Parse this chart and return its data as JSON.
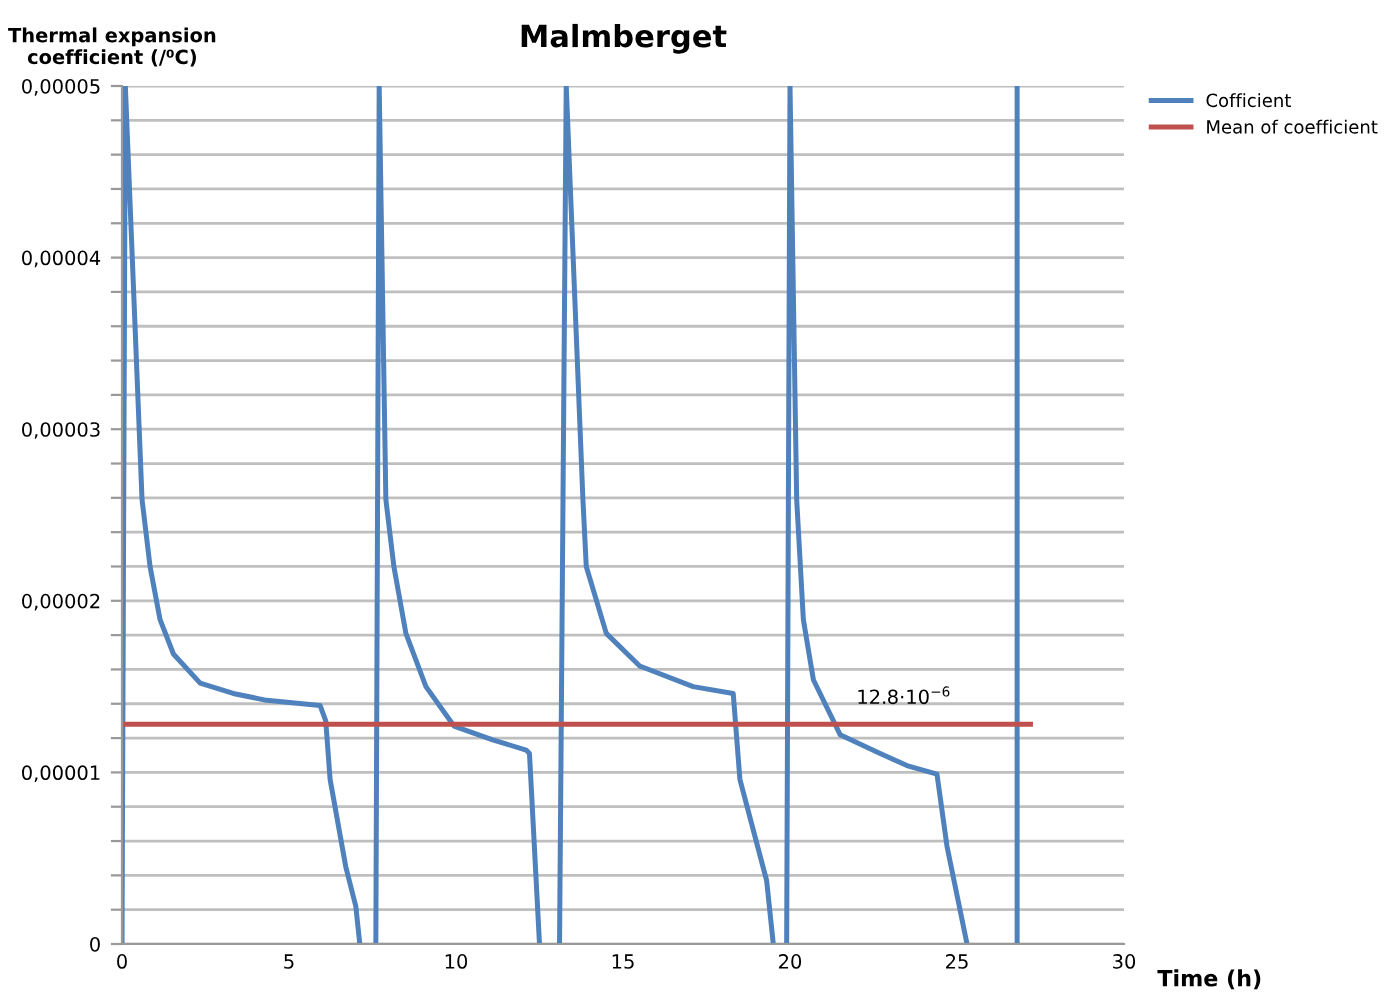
{
  "chart_data": {
    "type": "line",
    "title": "Malmberget",
    "xlabel": "Time (h)",
    "ylabel": "Thermal expansion\ncoefficient (/⁰C)",
    "xlim": [
      0,
      30
    ],
    "xticks": [
      0,
      5,
      10,
      15,
      20,
      25,
      30
    ],
    "ylim": [
      0,
      5e-05
    ],
    "yticks": [
      {
        "value": 0,
        "label": "0"
      },
      {
        "value": 2e-06,
        "label": null
      },
      {
        "value": 4e-06,
        "label": null
      },
      {
        "value": 6e-06,
        "label": null
      },
      {
        "value": 8e-06,
        "label": null
      },
      {
        "value": 1e-05,
        "label": "0,00001"
      },
      {
        "value": 1.2e-05,
        "label": null
      },
      {
        "value": 1.4e-05,
        "label": null
      },
      {
        "value": 1.6e-05,
        "label": null
      },
      {
        "value": 1.8e-05,
        "label": null
      },
      {
        "value": 2e-05,
        "label": "0,00002"
      },
      {
        "value": 2.2e-05,
        "label": null
      },
      {
        "value": 2.4e-05,
        "label": null
      },
      {
        "value": 2.6e-05,
        "label": null
      },
      {
        "value": 2.8e-05,
        "label": null
      },
      {
        "value": 3e-05,
        "label": "0,00003"
      },
      {
        "value": 3.2e-05,
        "label": null
      },
      {
        "value": 3.4e-05,
        "label": null
      },
      {
        "value": 3.6e-05,
        "label": null
      },
      {
        "value": 3.8e-05,
        "label": null
      },
      {
        "value": 4e-05,
        "label": "0,00004"
      },
      {
        "value": 4.2e-05,
        "label": null
      },
      {
        "value": 4.4e-05,
        "label": null
      },
      {
        "value": 4.6e-05,
        "label": null
      },
      {
        "value": 4.8e-05,
        "label": null
      },
      {
        "value": 5e-05,
        "label": "0,00005"
      }
    ],
    "grid": "y",
    "legend": "top right",
    "series": [
      {
        "name": "Cofficient",
        "color": "#4f81bd",
        "x": [
          0,
          0.1,
          0.6,
          0.84,
          1.14,
          1.54,
          2.34,
          3.33,
          4.33,
          5.93,
          6.1,
          6.23,
          6.7,
          7.0,
          7.12,
          null,
          7.6,
          7.7,
          7.9,
          8.14,
          8.5,
          9.1,
          9.94,
          11.1,
          12.1,
          12.2,
          12.5,
          null,
          13.1,
          13.3,
          13.8,
          13.9,
          14.5,
          15.5,
          17.1,
          18.3,
          18.5,
          19.3,
          19.5,
          null,
          19.9,
          20.0,
          20.2,
          20.4,
          20.7,
          21.5,
          22.7,
          23.5,
          24.4,
          24.7,
          25.3,
          null,
          26.8,
          26.8
        ],
        "values": [
          0,
          5e-05,
          2.59e-05,
          2.2e-05,
          1.89e-05,
          1.69e-05,
          1.52e-05,
          1.46e-05,
          1.42e-05,
          1.39e-05,
          1.3e-05,
          9.6e-06,
          4.5e-06,
          2.2e-06,
          0,
          null,
          0,
          5e-05,
          2.59e-05,
          2.2e-05,
          1.81e-05,
          1.5e-05,
          1.27e-05,
          1.19e-05,
          1.13e-05,
          1.11e-05,
          0,
          null,
          0,
          5e-05,
          2.59e-05,
          2.2e-05,
          1.81e-05,
          1.62e-05,
          1.5e-05,
          1.46e-05,
          9.6e-06,
          3.7e-06,
          0,
          null,
          0,
          5e-05,
          2.59e-05,
          1.89e-05,
          1.54e-05,
          1.22e-05,
          1.11e-05,
          1.04e-05,
          9.9e-06,
          5.7e-06,
          0,
          null,
          0,
          5e-05
        ]
      },
      {
        "name": "Mean of coefficient",
        "color": "#c0504d",
        "x": [
          0,
          27.2
        ],
        "values": [
          1.28e-05,
          1.28e-05
        ]
      }
    ],
    "annotations": [
      "12.8·10$^{−6}$"
    ]
  }
}
